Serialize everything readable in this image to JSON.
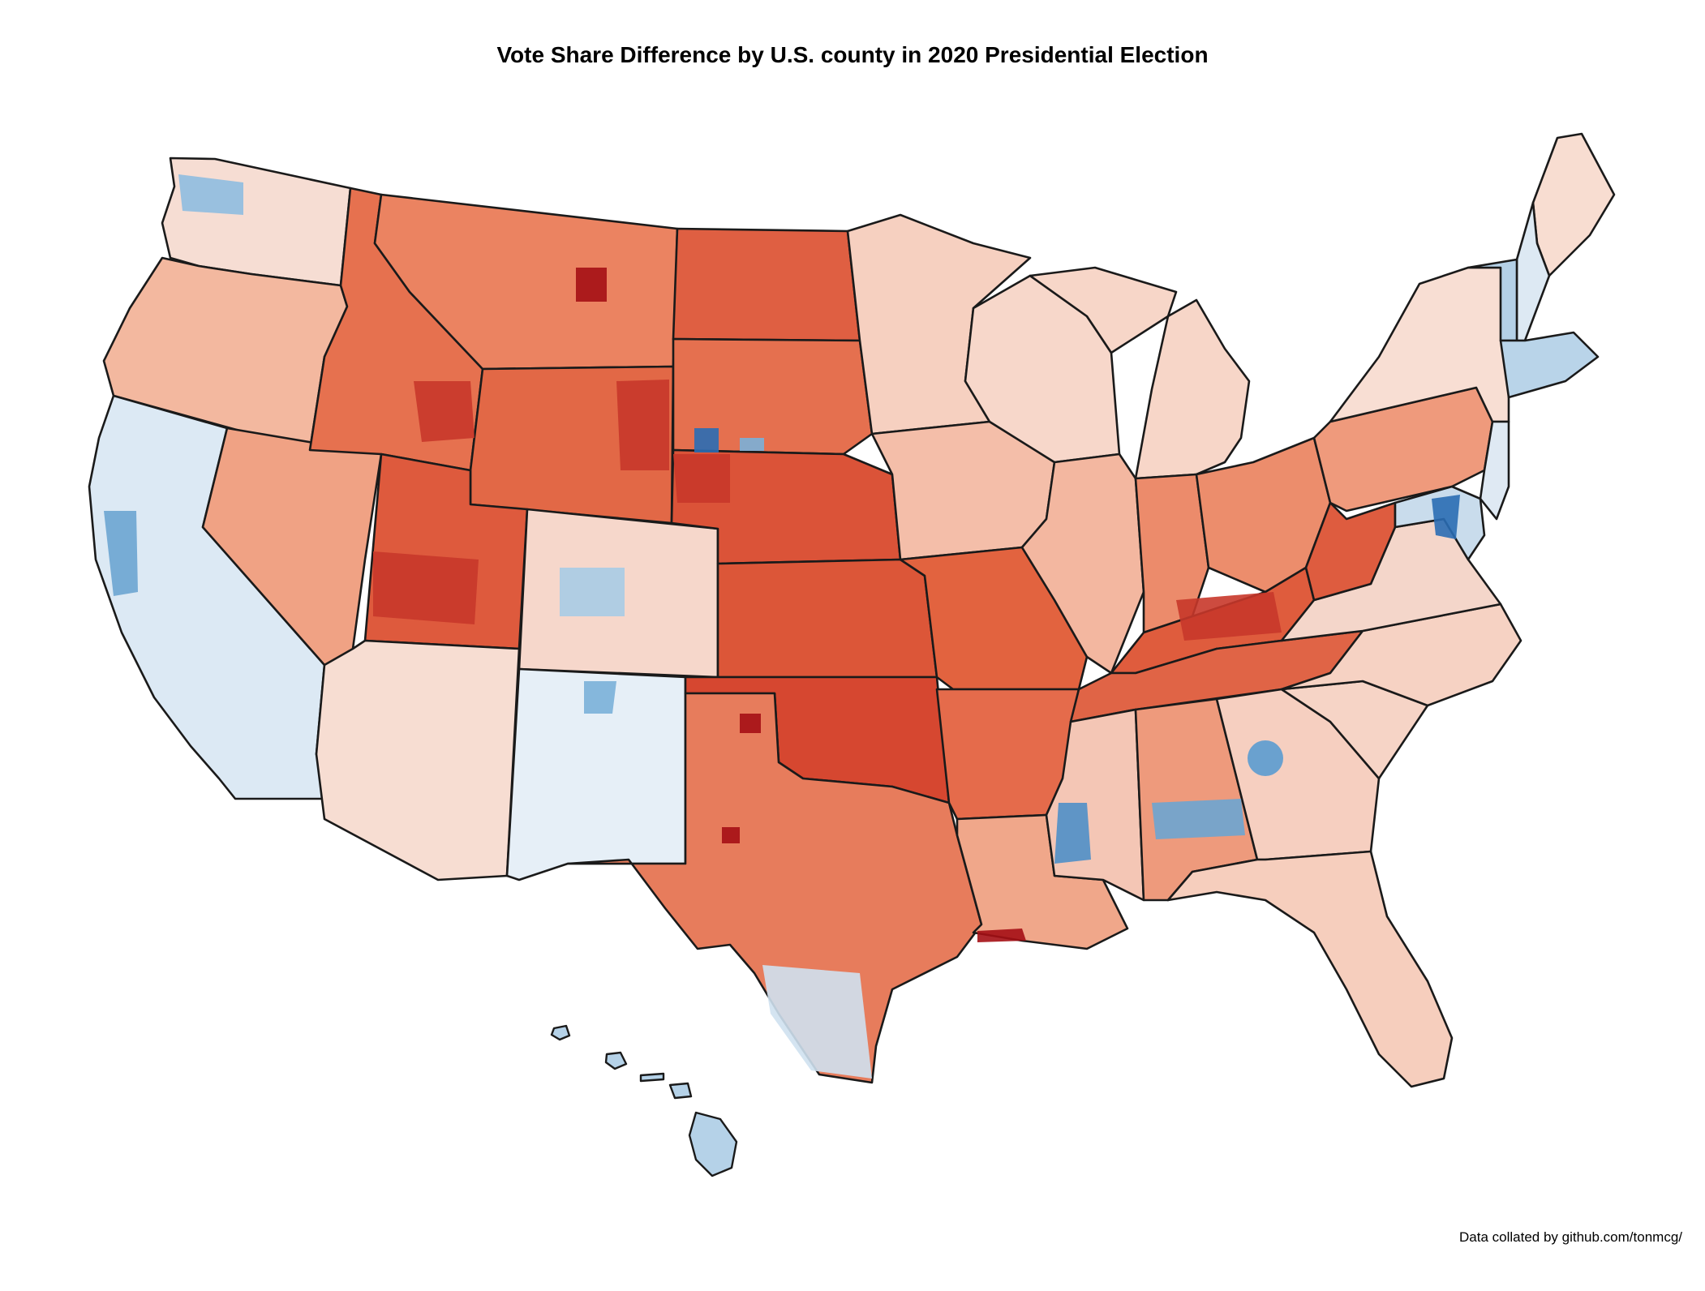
{
  "title": "Vote Share Difference by U.S. county in 2020 Presidential Election",
  "credit": "Data collated by github.com/tonmcg/",
  "colors": {
    "deep_red": "#a50f15",
    "red": "#d2412f",
    "mid_red": "#e8694d",
    "light_red": "#f4a88a",
    "pale_red": "#fbe0d4",
    "neutral": "#f2f2f2",
    "pale_blue": "#dce9f4",
    "light_blue": "#a9cce6",
    "mid_blue": "#6ba5d2",
    "deep_blue": "#2a6db4",
    "boundary": "#1a1a1a"
  },
  "regions": [
    {
      "name": "WA",
      "color": "#f6ddd3"
    },
    {
      "name": "OR",
      "color": "#f3b89f"
    },
    {
      "name": "CA",
      "color": "#dce9f4"
    },
    {
      "name": "NV",
      "color": "#f0a284"
    },
    {
      "name": "ID",
      "color": "#e6714f"
    },
    {
      "name": "MT",
      "color": "#eb8361"
    },
    {
      "name": "WY",
      "color": "#e26846"
    },
    {
      "name": "UT",
      "color": "#de5a3d"
    },
    {
      "name": "AZ",
      "color": "#f7ddd2"
    },
    {
      "name": "CO",
      "color": "#f6d7cb"
    },
    {
      "name": "NM",
      "color": "#e6eff7"
    },
    {
      "name": "ND",
      "color": "#df5f42"
    },
    {
      "name": "SD",
      "color": "#e5704f"
    },
    {
      "name": "NE",
      "color": "#db5338"
    },
    {
      "name": "KS",
      "color": "#dc5638"
    },
    {
      "name": "OK",
      "color": "#d64730"
    },
    {
      "name": "TX",
      "color": "#e77c5c"
    },
    {
      "name": "MN",
      "color": "#f6d0c0"
    },
    {
      "name": "IA",
      "color": "#f4bea9"
    },
    {
      "name": "MO",
      "color": "#e2633f"
    },
    {
      "name": "AR",
      "color": "#e56b4b"
    },
    {
      "name": "LA",
      "color": "#f0a78a"
    },
    {
      "name": "WI",
      "color": "#f7d7ca"
    },
    {
      "name": "IL",
      "color": "#f3b7a0"
    },
    {
      "name": "MI",
      "color": "#f7d6c8"
    },
    {
      "name": "IN",
      "color": "#ec8b6b"
    },
    {
      "name": "OH",
      "color": "#ec8d6c"
    },
    {
      "name": "KY",
      "color": "#df5c3d"
    },
    {
      "name": "TN",
      "color": "#e06446"
    },
    {
      "name": "MS",
      "color": "#f4c6b5"
    },
    {
      "name": "AL",
      "color": "#ee9a7c"
    },
    {
      "name": "GA",
      "color": "#f6cfc0"
    },
    {
      "name": "FL",
      "color": "#f6cebd"
    },
    {
      "name": "SC",
      "color": "#f6d4c6"
    },
    {
      "name": "NC",
      "color": "#f6d2c3"
    },
    {
      "name": "VA",
      "color": "#f4d6ca"
    },
    {
      "name": "WV",
      "color": "#de5c3f"
    },
    {
      "name": "PA",
      "color": "#ef9a7c"
    },
    {
      "name": "NY",
      "color": "#f8ded3"
    },
    {
      "name": "ME",
      "color": "#f8ddd1"
    },
    {
      "name": "NH",
      "color": "#dde9f3"
    },
    {
      "name": "VT",
      "color": "#b4d0e6"
    },
    {
      "name": "New England south",
      "color": "#b9d4e9"
    },
    {
      "name": "NJ",
      "color": "#dfe9f3"
    },
    {
      "name": "DE-MD",
      "color": "#c9dcec"
    }
  ],
  "hotspots": [
    {
      "name": "MT dark county",
      "color": "#a50f15"
    },
    {
      "name": "SD blue county",
      "color": "#2a6db4"
    },
    {
      "name": "SD light blue county",
      "color": "#7ab0d8"
    },
    {
      "name": "OK dark county",
      "color": "#a50f15"
    },
    {
      "name": "TX dark county",
      "color": "#a50f15"
    },
    {
      "name": "LA-TX dark coast",
      "color": "#a50f15"
    },
    {
      "name": "MS delta blue",
      "color": "#4f8fc8"
    },
    {
      "name": "AL black belt blue",
      "color": "#6ba5d2"
    },
    {
      "name": "GA metro blue",
      "color": "#5b9bd0"
    },
    {
      "name": "MD blue",
      "color": "#2a6db4"
    },
    {
      "name": "CA bay blue",
      "color": "#6ba5d2"
    },
    {
      "name": "WA west blue",
      "color": "#8fbde0"
    },
    {
      "name": "CO front range blue",
      "color": "#a9cce6"
    },
    {
      "name": "NM north blue",
      "color": "#7ab0d8"
    },
    {
      "name": "KY red",
      "color": "#c8372a"
    },
    {
      "name": "TX south blue",
      "color": "#cfe1f0"
    },
    {
      "name": "ID east red",
      "color": "#c8372a"
    },
    {
      "name": "WY red",
      "color": "#c8372a"
    },
    {
      "name": "NE west red",
      "color": "#c8372a"
    },
    {
      "name": "UT south red",
      "color": "#c8372a"
    }
  ],
  "insets": [
    {
      "name": "Hawaii",
      "color": "#b5d2e8"
    }
  ]
}
